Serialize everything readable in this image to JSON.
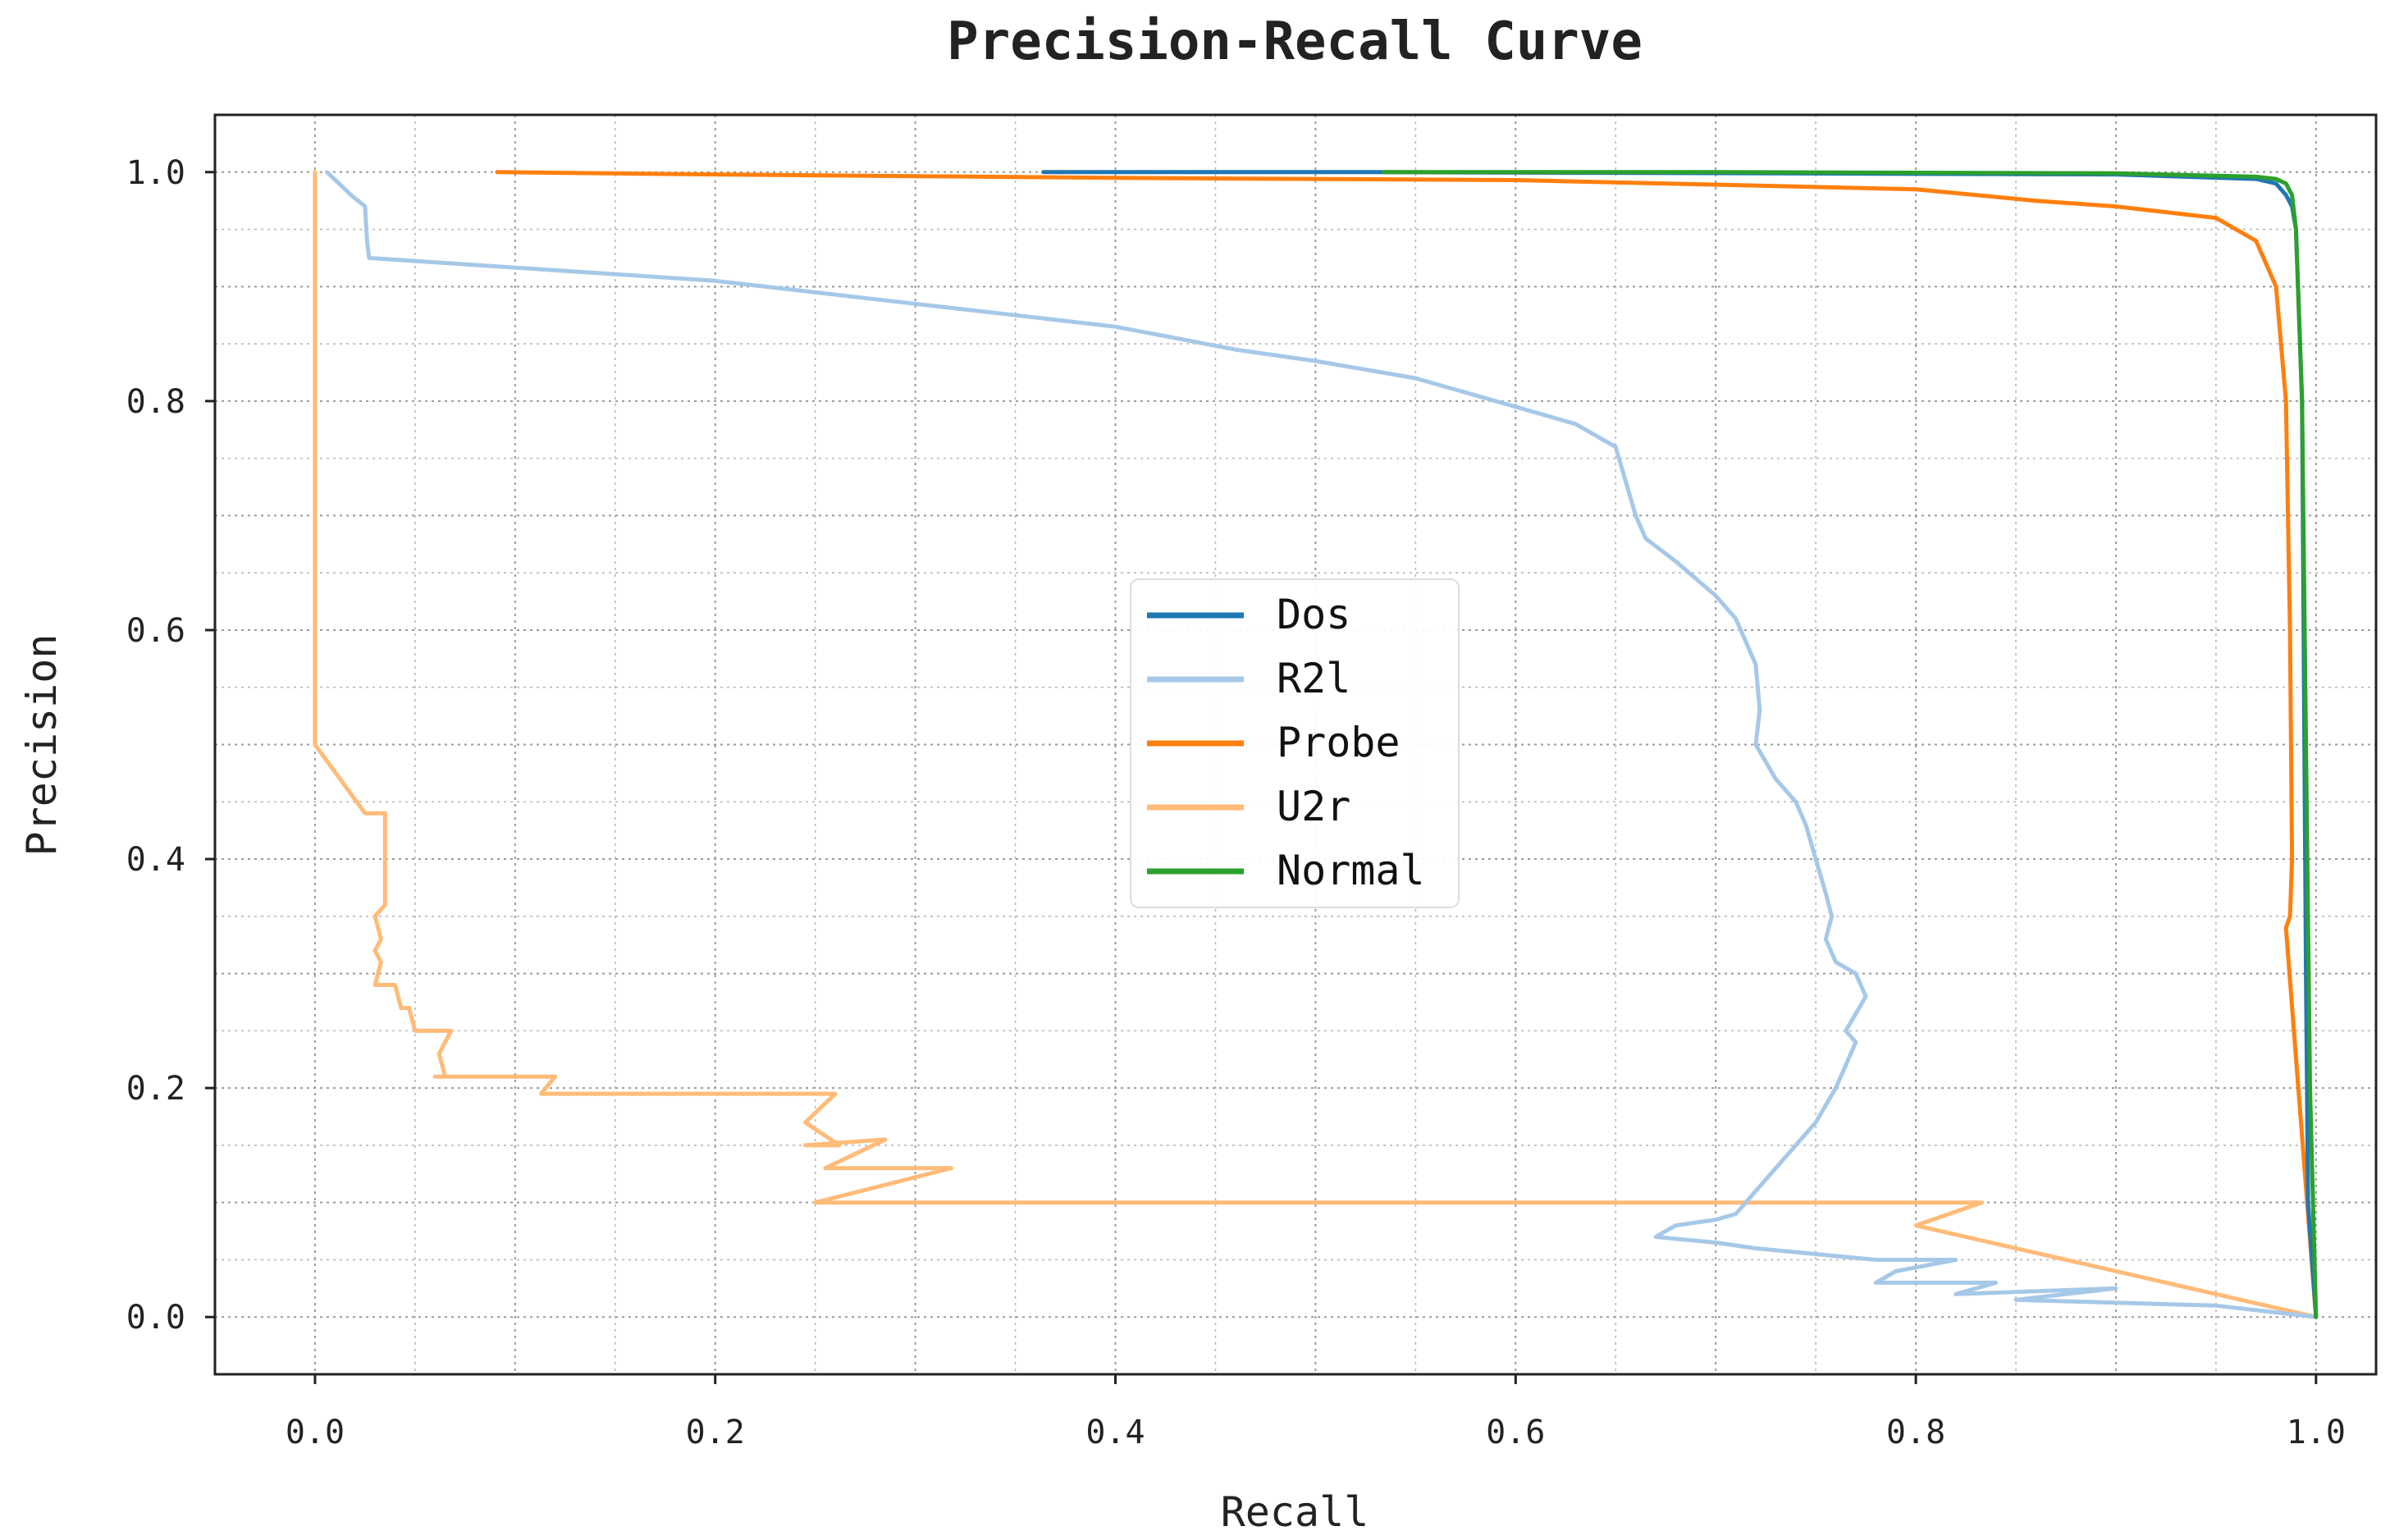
{
  "chart_data": {
    "type": "line",
    "title": "Precision-Recall Curve",
    "xlabel": "Recall",
    "ylabel": "Precision",
    "xlim": [
      -0.05,
      1.03
    ],
    "ylim": [
      -0.05,
      1.05
    ],
    "xticks": [
      0.0,
      0.2,
      0.4,
      0.6,
      0.8,
      1.0
    ],
    "xtick_labels": [
      "0.0",
      "0.2",
      "0.4",
      "0.6",
      "0.8",
      "1.0"
    ],
    "yticks": [
      0.0,
      0.2,
      0.4,
      0.6,
      0.8,
      1.0
    ],
    "ytick_labels": [
      "0.0",
      "0.2",
      "0.4",
      "0.6",
      "0.8",
      "1.0"
    ],
    "grid": "major and minor, dotted",
    "legend_position": "center",
    "series": [
      {
        "name": "Dos",
        "color": "#1f77b4",
        "x": [
          0.364,
          0.53,
          0.9,
          0.97,
          0.98,
          0.985,
          0.988,
          0.99,
          0.993,
          0.995,
          0.996,
          1.0
        ],
        "y": [
          1.0,
          1.0,
          0.998,
          0.994,
          0.99,
          0.98,
          0.97,
          0.95,
          0.8,
          0.3,
          0.1,
          0.0
        ]
      },
      {
        "name": "R2l",
        "color": "#a6c8e8",
        "x": [
          0.006,
          0.012,
          0.018,
          0.025,
          0.026,
          0.027,
          0.2,
          0.3,
          0.35,
          0.4,
          0.43,
          0.46,
          0.5,
          0.55,
          0.6,
          0.63,
          0.65,
          0.655,
          0.66,
          0.665,
          0.68,
          0.7,
          0.71,
          0.72,
          0.722,
          0.72,
          0.73,
          0.74,
          0.745,
          0.75,
          0.755,
          0.758,
          0.755,
          0.76,
          0.77,
          0.775,
          0.765,
          0.77,
          0.76,
          0.75,
          0.74,
          0.73,
          0.72,
          0.715,
          0.71,
          0.7,
          0.68,
          0.67,
          0.7,
          0.72,
          0.75,
          0.78,
          0.82,
          0.79,
          0.78,
          0.84,
          0.82,
          0.9,
          0.85,
          0.95,
          1.0
        ],
        "y": [
          1.0,
          0.99,
          0.98,
          0.97,
          0.94,
          0.925,
          0.905,
          0.885,
          0.875,
          0.865,
          0.855,
          0.845,
          0.835,
          0.82,
          0.795,
          0.78,
          0.76,
          0.73,
          0.7,
          0.68,
          0.66,
          0.63,
          0.61,
          0.57,
          0.53,
          0.5,
          0.47,
          0.45,
          0.43,
          0.4,
          0.37,
          0.35,
          0.33,
          0.31,
          0.3,
          0.28,
          0.25,
          0.24,
          0.2,
          0.17,
          0.15,
          0.13,
          0.11,
          0.1,
          0.09,
          0.085,
          0.08,
          0.07,
          0.065,
          0.06,
          0.055,
          0.05,
          0.05,
          0.04,
          0.03,
          0.03,
          0.02,
          0.025,
          0.015,
          0.01,
          0.0
        ]
      },
      {
        "name": "Probe",
        "color": "#ff7f0e",
        "x": [
          0.091,
          0.2,
          0.4,
          0.6,
          0.8,
          0.86,
          0.9,
          0.95,
          0.97,
          0.98,
          0.985,
          0.987,
          0.988,
          0.987,
          0.985,
          1.0
        ],
        "y": [
          1.0,
          0.998,
          0.995,
          0.993,
          0.985,
          0.975,
          0.97,
          0.96,
          0.94,
          0.9,
          0.8,
          0.6,
          0.4,
          0.35,
          0.34,
          0.0
        ]
      },
      {
        "name": "U2r",
        "color": "#ffbb78",
        "x": [
          0.0,
          0.0,
          0.0,
          0.025,
          0.035,
          0.035,
          0.03,
          0.033,
          0.03,
          0.033,
          0.03,
          0.04,
          0.043,
          0.047,
          0.05,
          0.055,
          0.068,
          0.062,
          0.065,
          0.06,
          0.12,
          0.113,
          0.26,
          0.245,
          0.262,
          0.245,
          0.285,
          0.255,
          0.318,
          0.25,
          0.8,
          0.833,
          0.8,
          1.0
        ],
        "y": [
          1.0,
          0.8,
          0.5,
          0.44,
          0.44,
          0.36,
          0.35,
          0.33,
          0.32,
          0.31,
          0.29,
          0.29,
          0.27,
          0.27,
          0.25,
          0.25,
          0.25,
          0.23,
          0.21,
          0.21,
          0.21,
          0.195,
          0.195,
          0.17,
          0.15,
          0.15,
          0.155,
          0.13,
          0.13,
          0.1,
          0.1,
          0.1,
          0.08,
          0.0
        ]
      },
      {
        "name": "Normal",
        "color": "#2ca02c",
        "x": [
          0.534,
          0.7,
          0.9,
          0.97,
          0.98,
          0.985,
          0.988,
          0.99,
          0.993,
          0.995,
          0.997,
          1.0
        ],
        "y": [
          1.0,
          1.0,
          0.999,
          0.996,
          0.994,
          0.99,
          0.98,
          0.95,
          0.8,
          0.5,
          0.2,
          0.0
        ]
      }
    ]
  }
}
